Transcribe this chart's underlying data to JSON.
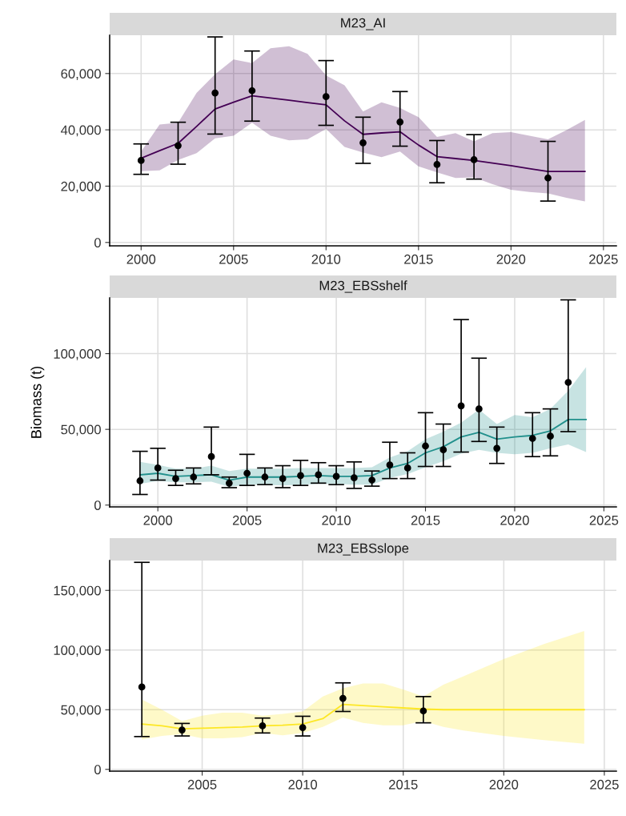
{
  "chart_data": [
    {
      "type": "line",
      "title": "M23_AI",
      "grid": true,
      "xlim": [
        1998.3,
        2025.7
      ],
      "ylim": [
        -1200,
        73600
      ],
      "xticks": [
        2000,
        2005,
        2010,
        2015,
        2020,
        2025
      ],
      "yticks": [
        0,
        {
          "value": 20000,
          "label": "20,000"
        },
        {
          "value": 40000,
          "label": "40,000"
        },
        {
          "value": 60000,
          "label": "60,000"
        }
      ],
      "series": [
        {
          "color": "#440154",
          "marker": "none",
          "x": [
            2000,
            2001,
            2002,
            2003,
            2004,
            2005,
            2006,
            2007,
            2008,
            2009,
            2010,
            2011,
            2012,
            2013,
            2014,
            2015,
            2016,
            2017,
            2018,
            2019,
            2020,
            2021,
            2022,
            2023,
            2024
          ],
          "values": [
            29900,
            32600,
            35200,
            41200,
            47400,
            49800,
            52100,
            51300,
            50500,
            49700,
            48900,
            43200,
            38400,
            38900,
            39300,
            34600,
            30500,
            29800,
            29100,
            28200,
            27300,
            26200,
            25200,
            25200,
            25200
          ],
          "upper": [
            32300,
            41900,
            42500,
            53100,
            59700,
            65000,
            63700,
            69000,
            69700,
            67000,
            59300,
            55800,
            46500,
            49800,
            47800,
            44500,
            37500,
            38800,
            35900,
            38800,
            39200,
            37900,
            36600,
            39900,
            43500
          ],
          "lower": [
            25300,
            25600,
            29300,
            31700,
            37000,
            37900,
            42500,
            37900,
            36300,
            36600,
            40300,
            33900,
            31900,
            30300,
            32300,
            27000,
            24900,
            22900,
            23100,
            20700,
            18700,
            17900,
            17400,
            15900,
            14600
          ]
        },
        {
          "type": "scatter",
          "color": "#000000",
          "marker": "circle",
          "x": [
            2000,
            2002,
            2004,
            2006,
            2010,
            2012,
            2014,
            2016,
            2018,
            2022
          ],
          "values": [
            29100,
            34400,
            53100,
            53900,
            51800,
            35400,
            42800,
            27700,
            29400,
            22900
          ],
          "errors": [
            [
              24200,
              35000
            ],
            [
              27800,
              42700
            ],
            [
              38500,
              73000
            ],
            [
              43100,
              68000
            ],
            [
              41600,
              64600
            ],
            [
              28100,
              44500
            ],
            [
              34200,
              53600
            ],
            [
              21200,
              36200
            ],
            [
              22500,
              38300
            ],
            [
              14700,
              35900
            ]
          ]
        }
      ]
    },
    {
      "type": "line",
      "title": "M23_EBSshelf",
      "ylabel": "Biomass (t)",
      "grid": true,
      "xlim": [
        1997.3,
        2025.7
      ],
      "ylim": [
        -1200,
        136800
      ],
      "xticks": [
        2000,
        2005,
        2010,
        2015,
        2020,
        2025
      ],
      "yticks": [
        0,
        {
          "value": 50000,
          "label": "50,000"
        },
        {
          "value": 100000,
          "label": "100,000"
        }
      ],
      "series": [
        {
          "color": "#21908c",
          "marker": "none",
          "x": [
            1999,
            2000,
            2001,
            2002,
            2003,
            2004,
            2005,
            2006,
            2007,
            2008,
            2009,
            2010,
            2011,
            2012,
            2013,
            2014,
            2015,
            2016,
            2017,
            2018,
            2019,
            2020,
            2021,
            2022,
            2023,
            2024
          ],
          "values": [
            20000,
            21000,
            19000,
            19500,
            20000,
            16500,
            18500,
            18500,
            18500,
            19000,
            19500,
            19000,
            19000,
            19500,
            24500,
            27500,
            34500,
            38500,
            45000,
            48000,
            43500,
            45000,
            46000,
            49000,
            56500,
            56500
          ],
          "upper": [
            28500,
            26500,
            24000,
            24000,
            26000,
            22500,
            24000,
            24000,
            24000,
            24500,
            24500,
            24500,
            24500,
            25000,
            31500,
            35500,
            43500,
            48500,
            54500,
            63000,
            53500,
            59500,
            58000,
            63500,
            75500,
            91000
          ],
          "lower": [
            14000,
            16000,
            15000,
            15000,
            15500,
            12000,
            13500,
            13500,
            13000,
            13500,
            14000,
            14000,
            13500,
            13500,
            18000,
            20500,
            25000,
            29000,
            34000,
            36500,
            34500,
            33500,
            34500,
            37500,
            40000,
            35000
          ]
        },
        {
          "type": "scatter",
          "color": "#000000",
          "marker": "circle",
          "x": [
            1999,
            2000,
            2001,
            2002,
            2003,
            2004,
            2005,
            2006,
            2007,
            2008,
            2009,
            2010,
            2011,
            2012,
            2013,
            2014,
            2015,
            2016,
            2017,
            2018,
            2019,
            2021,
            2022,
            2023
          ],
          "values": [
            16000,
            24500,
            17500,
            18500,
            32000,
            14500,
            21000,
            18500,
            17500,
            19500,
            20000,
            19000,
            18000,
            16500,
            26500,
            24500,
            39000,
            36500,
            65500,
            63500,
            37500,
            44000,
            45500,
            81000
          ],
          "errors": [
            [
              7000,
              35500
            ],
            [
              16500,
              37500
            ],
            [
              13000,
              23000
            ],
            [
              14000,
              24500
            ],
            [
              20000,
              51500
            ],
            [
              11500,
              18500
            ],
            [
              13000,
              33500
            ],
            [
              13500,
              24500
            ],
            [
              11500,
              26000
            ],
            [
              13000,
              29500
            ],
            [
              14500,
              28000
            ],
            [
              13500,
              26000
            ],
            [
              11000,
              28500
            ],
            [
              12500,
              22500
            ],
            [
              17500,
              41500
            ],
            [
              17500,
              34500
            ],
            [
              25500,
              61000
            ],
            [
              25500,
              53500
            ],
            [
              35000,
              122500
            ],
            [
              42000,
              97000
            ],
            [
              27500,
              51500
            ],
            [
              32000,
              61000
            ],
            [
              32500,
              63500
            ],
            [
              48500,
              135500
            ]
          ]
        }
      ]
    },
    {
      "type": "line",
      "title": "M23_EBSslope",
      "grid": true,
      "xlim": [
        2000.4,
        2025.6
      ],
      "ylim": [
        -1500,
        175000
      ],
      "xticks": [
        2005,
        2010,
        2015,
        2020,
        2025
      ],
      "yticks": [
        0,
        {
          "value": 50000,
          "label": "50,000"
        },
        {
          "value": 100000,
          "label": "100,000"
        },
        {
          "value": 150000,
          "label": "150,000"
        }
      ],
      "series": [
        {
          "color": "#fde725",
          "marker": "none",
          "x": [
            2002,
            2003,
            2004,
            2005,
            2006,
            2007,
            2008,
            2009,
            2010,
            2011,
            2012,
            2013,
            2014,
            2015,
            2016,
            2017,
            2018,
            2020,
            2022,
            2024
          ],
          "values": [
            38000,
            36500,
            34000,
            34500,
            35000,
            35500,
            36500,
            37000,
            38000,
            42500,
            54500,
            53500,
            52500,
            51500,
            50500,
            50000,
            50000,
            50000,
            50000,
            50000
          ],
          "upper": [
            58500,
            50000,
            40500,
            45000,
            47500,
            47500,
            45000,
            46500,
            48500,
            61000,
            68000,
            72000,
            72000,
            67000,
            61000,
            71000,
            78000,
            92500,
            105000,
            116000
          ],
          "lower": [
            25000,
            28000,
            29500,
            26000,
            26000,
            27000,
            30500,
            28500,
            30500,
            35500,
            43500,
            39000,
            37000,
            37000,
            40500,
            35500,
            32500,
            28000,
            24500,
            21500
          ]
        },
        {
          "type": "scatter",
          "color": "#000000",
          "marker": "circle",
          "x": [
            2002,
            2004,
            2008,
            2010,
            2012,
            2016
          ],
          "values": [
            69000,
            33000,
            36500,
            35000,
            59500,
            49000
          ],
          "errors": [
            [
              27500,
              173500
            ],
            [
              28000,
              38500
            ],
            [
              30500,
              43000
            ],
            [
              28000,
              44500
            ],
            [
              48500,
              72500
            ],
            [
              39000,
              61000
            ]
          ]
        }
      ]
    }
  ]
}
